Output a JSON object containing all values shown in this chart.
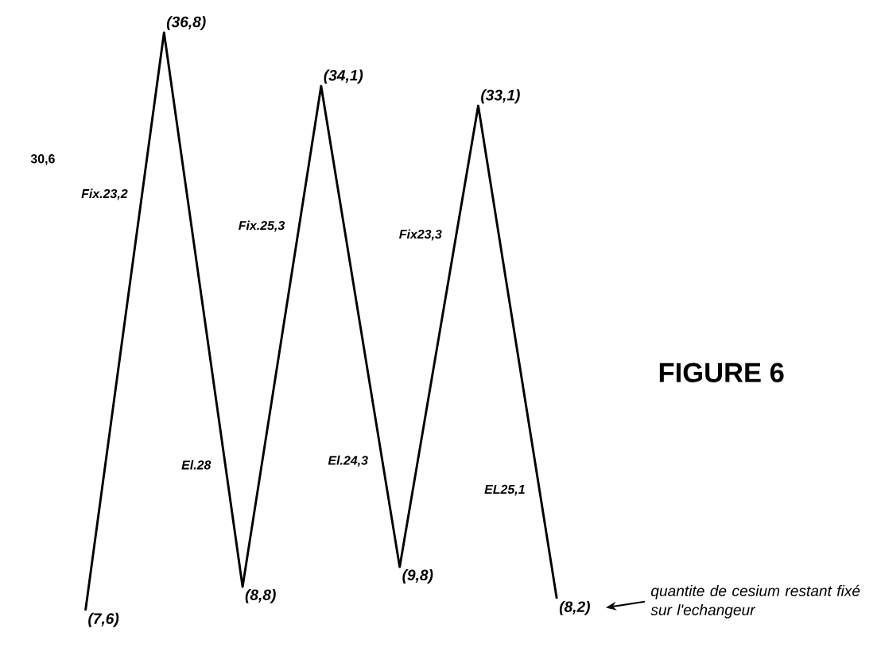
{
  "chart_data": {
    "type": "line",
    "title": "FIGURE 6",
    "categories": [
      null,
      null,
      null,
      null,
      null,
      null,
      null
    ],
    "values": [
      7.6,
      36.8,
      8.8,
      34.1,
      9.8,
      33.1,
      8.2
    ],
    "value_labels": [
      "(7,6)",
      "(36,8)",
      "(8,8)",
      "(34,1)",
      "(9,8)",
      "(33,1)",
      "(8,2)"
    ],
    "color": "#000000",
    "annotations": [
      "30,6",
      "Fix.23,2",
      "Fix.25,3",
      "Fix23,3",
      "El.28",
      "El.24,3",
      "EL25,1",
      "quantite de cesium restant fixé sur l'echangeur"
    ]
  }
}
